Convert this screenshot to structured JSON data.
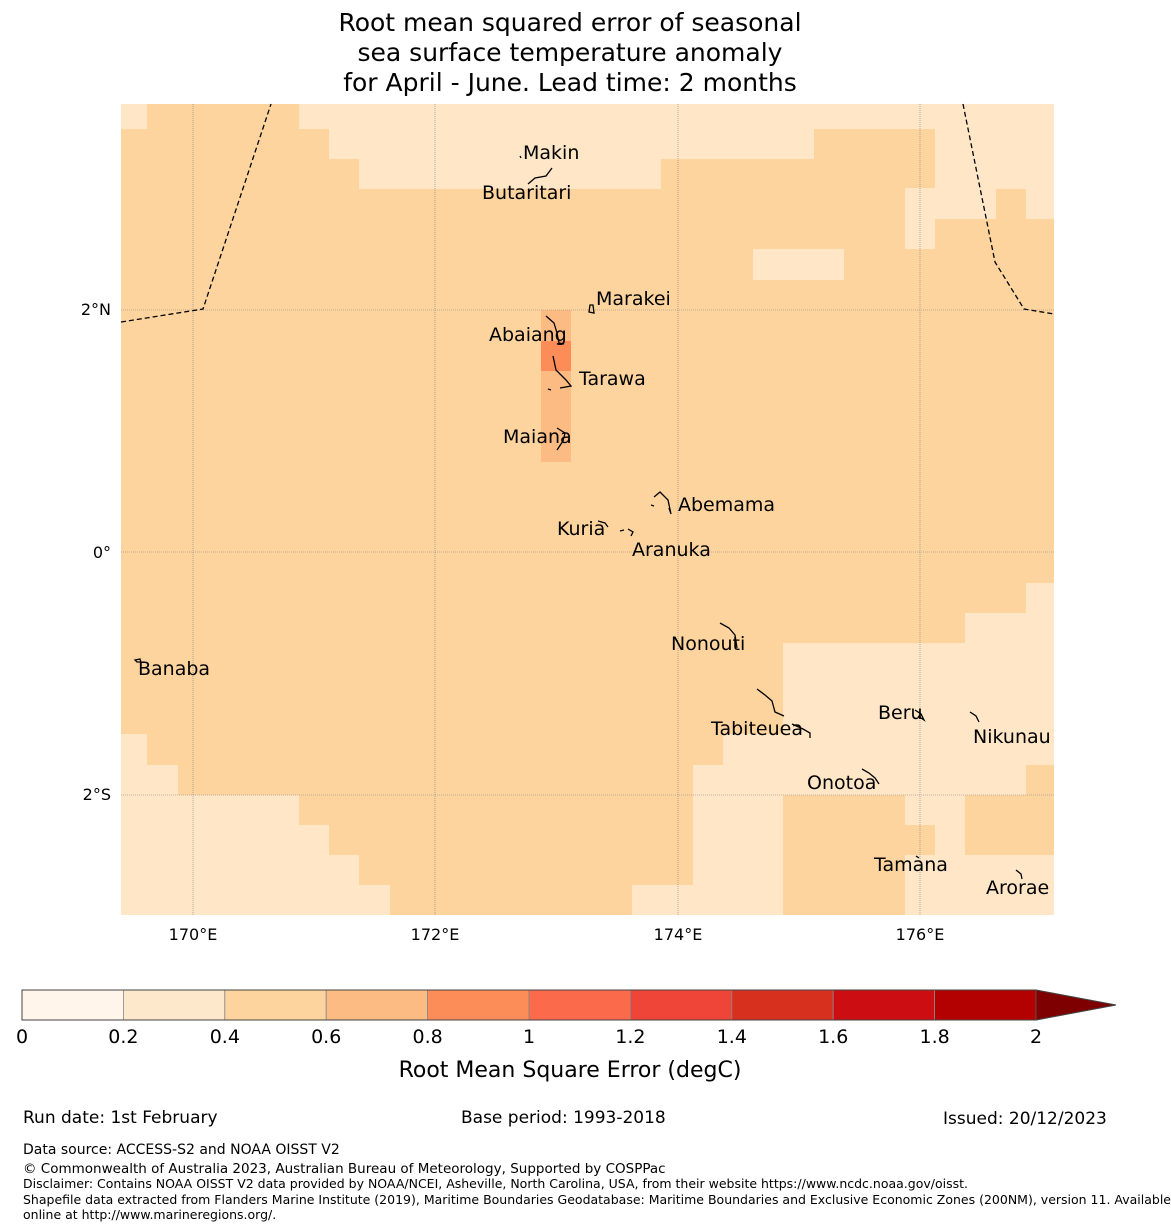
{
  "title": {
    "line1": "Root mean squared error of seasonal",
    "line2": "sea surface temperature anomaly",
    "line3": "for April - June. Lead time: 2 months"
  },
  "map": {
    "lat_labels": [
      "2°N",
      "0°",
      "2°S"
    ],
    "lon_labels": [
      "170°E",
      "172°E",
      "174°E",
      "176°E"
    ],
    "islands": [
      {
        "name": "Makin"
      },
      {
        "name": "Butaritari"
      },
      {
        "name": "Marakei"
      },
      {
        "name": "Abaiang"
      },
      {
        "name": "Tarawa"
      },
      {
        "name": "Maiana"
      },
      {
        "name": "Abemama"
      },
      {
        "name": "Kuria"
      },
      {
        "name": "Aranuka"
      },
      {
        "name": "Nonouti"
      },
      {
        "name": "Banaba"
      },
      {
        "name": "Tabiteuea"
      },
      {
        "name": "Beru"
      },
      {
        "name": "Nikunau"
      },
      {
        "name": "Onotoa"
      },
      {
        "name": "Tamana"
      },
      {
        "name": "Arorae"
      }
    ],
    "colors": {
      "band_0_0.2": "#fff5e5",
      "band_0.2_0.4": "#fee6c7",
      "band_0.4_0.6": "#fdd49e",
      "band_0.6_0.8": "#fdbb84",
      "band_0.8_1": "#fc8d59"
    }
  },
  "colorbar": {
    "ticks": [
      "0",
      "0.2",
      "0.4",
      "0.6",
      "0.8",
      "1",
      "1.2",
      "1.4",
      "1.6",
      "1.8",
      "2"
    ],
    "colors": [
      "#fff5eb",
      "#fee8cc",
      "#fdd49e",
      "#fdbb84",
      "#fc8d59",
      "#fb6a4a",
      "#ef4538",
      "#d7301f",
      "#cc0d12",
      "#b30000"
    ],
    "extend_color": "#7f0000",
    "label": "Root Mean Square Error (degC)"
  },
  "footer": {
    "run_date": "Run date: 1st February",
    "base_period": "Base period: 1993-2018",
    "issued": "Issued: 20/12/2023",
    "data_source": "Data source: ACCESS-S2 and NOAA OISST V2",
    "copyright": "© Commonwealth of Australia 2023, Australian Bureau of Meteorology, Supported by COSPPac",
    "disclaimer": "Disclaimer: Contains NOAA OISST V2 data provided by NOAA/NCEI, Asheville, North Carolina, USA, from their website https://www.ncdc.noaa.gov/oisst.",
    "shapefile_line1": "Shapefile data extracted from Flanders Marine Institute (2019), Maritime Boundaries Geodatabase: Maritime Boundaries and Exclusive Economic Zones (200NM), version 11. Available",
    "shapefile_line2": "online at http://www.marineregions.org/."
  }
}
